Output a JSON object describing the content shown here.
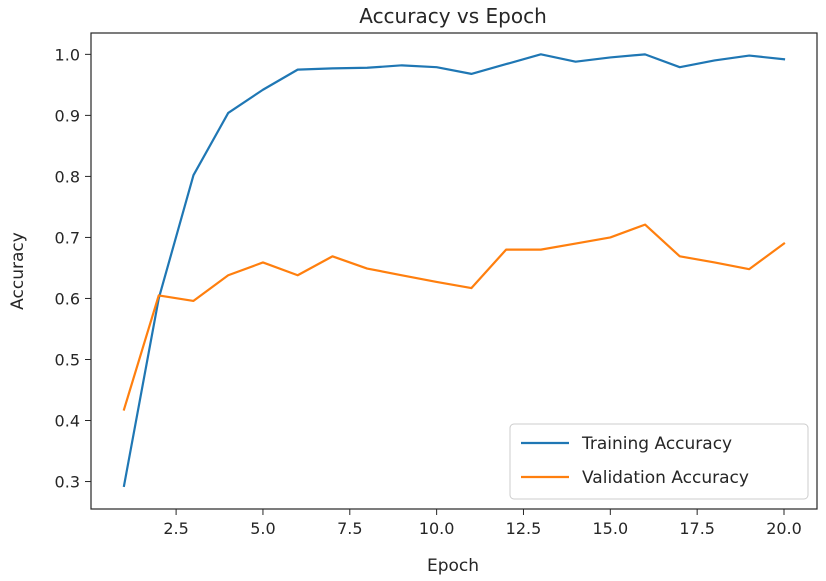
{
  "chart_data": {
    "type": "line",
    "title": "Accuracy vs Epoch",
    "xlabel": "Epoch",
    "ylabel": "Accuracy",
    "xlim": [
      0.05,
      20.95
    ],
    "ylim": [
      0.255,
      1.035
    ],
    "xticks": [
      2.5,
      5.0,
      7.5,
      10.0,
      12.5,
      15.0,
      17.5,
      20.0
    ],
    "xtick_labels": [
      "2.5",
      "5.0",
      "7.5",
      "10.0",
      "12.5",
      "15.0",
      "17.5",
      "20.0"
    ],
    "yticks": [
      0.3,
      0.4,
      0.5,
      0.6,
      0.7,
      0.8,
      0.9,
      1.0
    ],
    "ytick_labels": [
      "0.3",
      "0.4",
      "0.5",
      "0.6",
      "0.7",
      "0.8",
      "0.9",
      "1.0"
    ],
    "grid": false,
    "legend_position": "lower-right",
    "x": [
      1,
      2,
      3,
      4,
      5,
      6,
      7,
      8,
      9,
      10,
      11,
      12,
      13,
      14,
      15,
      16,
      17,
      18,
      19,
      20
    ],
    "series": [
      {
        "name": "Training Accuracy",
        "color": "#1f77b4",
        "values": [
          0.293,
          0.6,
          0.802,
          0.904,
          0.942,
          0.975,
          0.977,
          0.978,
          0.982,
          0.979,
          0.968,
          0.984,
          1.0,
          0.988,
          0.995,
          1.0,
          0.979,
          0.99,
          0.998,
          0.992
        ]
      },
      {
        "name": "Validation Accuracy",
        "color": "#ff7f0e",
        "values": [
          0.418,
          0.605,
          0.596,
          0.638,
          0.659,
          0.638,
          0.669,
          0.649,
          0.638,
          0.627,
          0.617,
          0.68,
          0.68,
          0.69,
          0.7,
          0.721,
          0.669,
          0.659,
          0.648,
          0.69
        ]
      }
    ]
  }
}
